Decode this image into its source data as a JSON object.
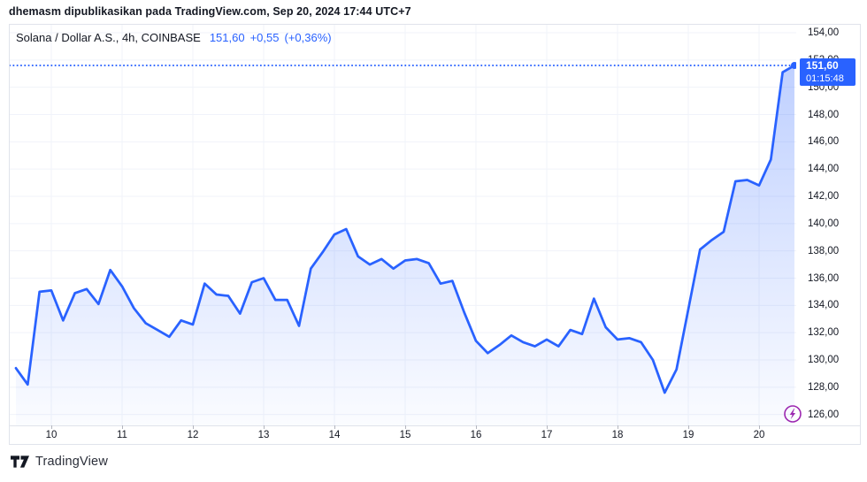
{
  "publish_bar": {
    "text": "dhemasm dipublikasikan pada TradingView.com, Sep 20, 2024 17:44 UTC+7"
  },
  "legend": {
    "symbol_title": "Solana / Dollar A.S., 4h, COINBASE",
    "last_price": "151,60",
    "change": "+0,55",
    "change_pct": "(+0,36%)"
  },
  "price_scale": {
    "labels": [
      "154,00",
      "152,00",
      "150,00",
      "148,00",
      "146,00",
      "144,00",
      "142,00",
      "140,00",
      "138,00",
      "136,00",
      "134,00",
      "132,00",
      "130,00",
      "128,00",
      "126,00"
    ],
    "values": [
      154,
      152,
      150,
      148,
      146,
      144,
      142,
      140,
      138,
      136,
      134,
      132,
      130,
      128,
      126
    ],
    "badge": {
      "price": "151,60",
      "countdown": "01:15:48"
    }
  },
  "time_scale": {
    "labels": [
      "10",
      "11",
      "12",
      "13",
      "14",
      "15",
      "16",
      "17",
      "18",
      "19",
      "20"
    ]
  },
  "footer": {
    "logo_text": "TradingView"
  },
  "colors": {
    "accent_blue": "#2962FF",
    "text_dark": "#131722",
    "grid": "#F0F3FA",
    "frame_border": "#E0E3EB",
    "axis_tick": "#B2B5BE",
    "flash_purple": "#9C27B0",
    "badge_text": "#FFFFFF",
    "area_top_opacity": 0.3,
    "area_bottom_opacity": 0.02
  },
  "chart_data": {
    "type": "area",
    "title": "Solana / Dollar A.S., 4h, COINBASE",
    "symbol": "Solana / Dollar A.S.",
    "interval": "4h",
    "exchange": "COINBASE",
    "x_start": "Sep 9 2024 12:00",
    "x_step_hours": 4,
    "x_tick_day_labels": [
      "10",
      "11",
      "12",
      "13",
      "14",
      "15",
      "16",
      "17",
      "18",
      "19",
      "20"
    ],
    "y_ticks": [
      154,
      152,
      150,
      148,
      146,
      144,
      142,
      140,
      138,
      136,
      134,
      132,
      130,
      128,
      126
    ],
    "ylim": [
      125.2,
      154.6
    ],
    "grid": true,
    "last_price": 151.6,
    "change": 0.55,
    "change_pct": 0.36,
    "countdown": "01:15:48",
    "prices": [
      129.4,
      128.2,
      135.0,
      135.1,
      132.9,
      134.9,
      135.2,
      134.1,
      136.6,
      135.4,
      133.8,
      132.7,
      132.2,
      131.7,
      132.9,
      132.6,
      135.6,
      134.8,
      134.7,
      133.4,
      135.7,
      136.0,
      134.4,
      134.4,
      132.5,
      136.7,
      137.9,
      139.2,
      139.6,
      137.6,
      137.0,
      137.4,
      136.7,
      137.3,
      137.4,
      137.1,
      135.6,
      135.8,
      133.5,
      131.4,
      130.5,
      131.1,
      131.8,
      131.3,
      131.0,
      131.5,
      131.0,
      132.2,
      131.9,
      134.5,
      132.4,
      131.5,
      131.6,
      131.3,
      130.0,
      127.6,
      129.3,
      133.7,
      138.1,
      138.8,
      139.4,
      143.1,
      143.2,
      142.8,
      144.7,
      151.1,
      151.6
    ]
  }
}
